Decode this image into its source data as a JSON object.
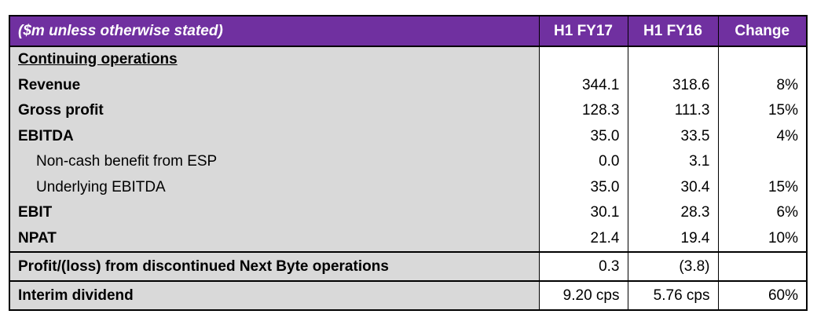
{
  "table": {
    "header": [
      "($m unless otherwise stated)",
      "H1 FY17",
      "H1 FY16",
      "Change"
    ],
    "rows": [
      [
        "Continuing operations"
      ],
      [
        "Revenue",
        "344.1",
        "318.6",
        "8%"
      ],
      [
        "Gross profit",
        "128.3",
        "111.3",
        "15%"
      ],
      [
        "EBITDA",
        "35.0",
        "33.5",
        "4%"
      ],
      [
        "Non-cash benefit from ESP",
        "0.0",
        "3.1"
      ],
      [
        "Underlying EBITDA",
        "35.0",
        "30.4",
        "15%"
      ],
      [
        "EBIT",
        "30.1",
        "28.3",
        "6%"
      ],
      [
        "NPAT",
        "21.4",
        "19.4",
        "10%"
      ],
      [
        "Profit/(loss) from discontinued Next Byte operations",
        "0.3",
        "(3.8)"
      ],
      [
        "Interim dividend",
        "9.20 cps",
        "5.76 cps",
        "60%"
      ]
    ]
  }
}
